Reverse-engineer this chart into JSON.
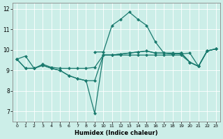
{
  "xlabel": "Humidex (Indice chaleur)",
  "background_color": "#cceee8",
  "grid_color": "#ffffff",
  "line_color": "#1a7a6e",
  "xlim": [
    -0.5,
    23.5
  ],
  "ylim": [
    6.5,
    12.3
  ],
  "xticks": [
    0,
    1,
    2,
    3,
    4,
    5,
    6,
    7,
    8,
    9,
    10,
    11,
    12,
    13,
    14,
    15,
    16,
    17,
    18,
    19,
    20,
    21,
    22,
    23
  ],
  "yticks": [
    7,
    8,
    9,
    10,
    11,
    12
  ],
  "line1_x": [
    0,
    1,
    2,
    3,
    4,
    5,
    6,
    7,
    8,
    9,
    10,
    11,
    12,
    13,
    14,
    15,
    16,
    17,
    18,
    19,
    20,
    21,
    22,
    23
  ],
  "line1_y": [
    9.55,
    9.7,
    9.1,
    9.3,
    9.15,
    9.1,
    9.1,
    9.1,
    9.1,
    9.15,
    9.75,
    9.75,
    9.75,
    9.75,
    9.75,
    9.75,
    9.75,
    9.75,
    9.75,
    9.75,
    9.4,
    9.2,
    9.95,
    10.05
  ],
  "line2_x": [
    0,
    1,
    2,
    3,
    4,
    5,
    6,
    7,
    8,
    9,
    10,
    11,
    12,
    13,
    14,
    15,
    16,
    17,
    18,
    19,
    20,
    21,
    22,
    23
  ],
  "line2_y": [
    9.55,
    9.1,
    9.1,
    9.25,
    9.1,
    9.0,
    8.75,
    8.6,
    8.5,
    8.5,
    9.75,
    9.75,
    9.8,
    9.85,
    9.9,
    9.95,
    9.85,
    9.85,
    9.8,
    9.85,
    9.4,
    9.2,
    9.95,
    10.05
  ],
  "line3_x": [
    0,
    1,
    2,
    3,
    4,
    5,
    6,
    7,
    8,
    9,
    10,
    11,
    12,
    13,
    14,
    15,
    16,
    17,
    18,
    19,
    20,
    21,
    22,
    23
  ],
  "line3_y": [
    9.55,
    9.1,
    9.1,
    9.25,
    9.1,
    9.0,
    8.75,
    8.6,
    8.5,
    6.9,
    9.75,
    9.75,
    9.8,
    9.85,
    9.9,
    9.95,
    9.85,
    9.85,
    9.8,
    9.85,
    9.4,
    9.2,
    9.95,
    10.05
  ],
  "line4_x": [
    9,
    10,
    11,
    12,
    13,
    14,
    15,
    16,
    17,
    18,
    19,
    20,
    21,
    22,
    23
  ],
  "line4_y": [
    9.9,
    9.9,
    11.2,
    11.5,
    11.85,
    11.5,
    11.2,
    10.4,
    9.85,
    9.85,
    9.8,
    9.85,
    9.2,
    9.95,
    10.05
  ],
  "marker_size": 2.5,
  "linewidth": 0.9
}
